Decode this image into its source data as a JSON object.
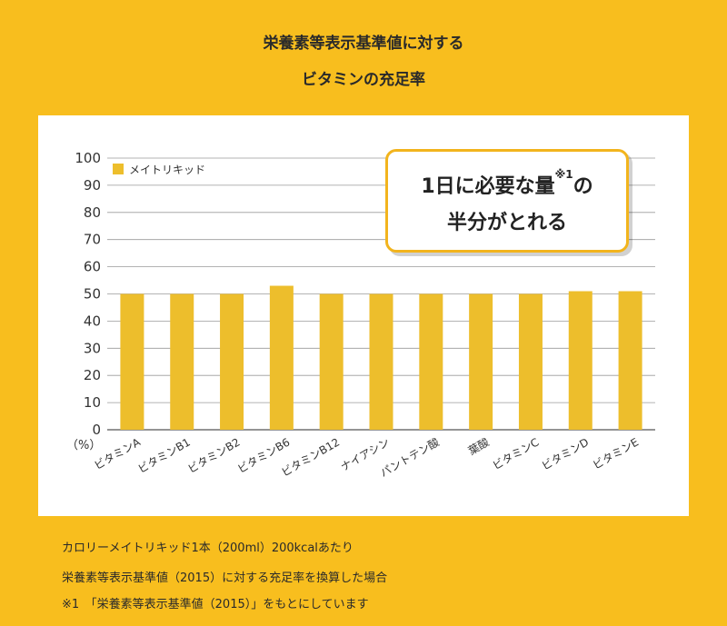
{
  "header": {
    "title_line1": "栄養素等表示基準値に対する",
    "title_line2": "ビタミンの充足率"
  },
  "callout": {
    "line1_main": "1日に必要な量",
    "line1_sup": "※1",
    "line1_end": "の",
    "line2": "半分がとれる"
  },
  "chart_data": {
    "type": "bar",
    "unit_label": "（%）",
    "ylim": [
      0,
      100
    ],
    "yticks": [
      0,
      10,
      20,
      30,
      40,
      50,
      60,
      70,
      80,
      90,
      100
    ],
    "grid": true,
    "legend": "top-left",
    "categories": [
      "ビタミンA",
      "ビタミンB1",
      "ビタミンB2",
      "ビタミンB6",
      "ビタミンB12",
      "ナイアシン",
      "パントテン酸",
      "葉酸",
      "ビタミンC",
      "ビタミンD",
      "ビタミンE"
    ],
    "series": [
      {
        "name": "メイトリキッド",
        "color": "#EDBE2C",
        "values": [
          50,
          50,
          50,
          53,
          50,
          50,
          50,
          50,
          50,
          51,
          51
        ]
      }
    ]
  },
  "notes": [
    "カロリーメイトリキッド1本（200ml）200kcalあたり",
    "栄養素等表示基準値（2015）に対する充足率を換算した場合",
    "※1　「栄養素等表示基準値（2015）」をもとにしています"
  ]
}
